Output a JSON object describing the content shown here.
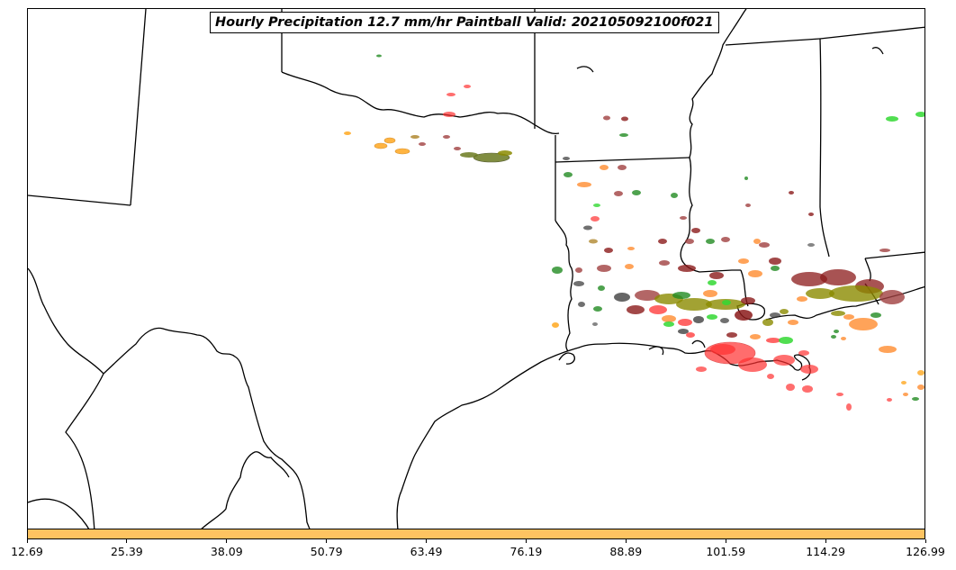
{
  "title": "Hourly Precipitation 12.7 mm/hr Paintball Valid: 202105092100f021",
  "colorbar": {
    "color": "#fec361",
    "tick_labels": [
      "12.69",
      "25.39",
      "38.09",
      "50.79",
      "63.49",
      "76.19",
      "88.89",
      "101.59",
      "114.29",
      "126.99"
    ]
  },
  "map": {
    "region": "South-central United States and northwestern Gulf of Mexico",
    "line_color": "#000000",
    "background": "#ffffff",
    "paintball_colors": [
      "#ff3030",
      "#ff8c30",
      "#ffa820",
      "#8b1a1a",
      "#228b22",
      "#32d832",
      "#8b8b00",
      "#6b7a20",
      "#b08830",
      "#333333",
      "#a04040"
    ]
  }
}
